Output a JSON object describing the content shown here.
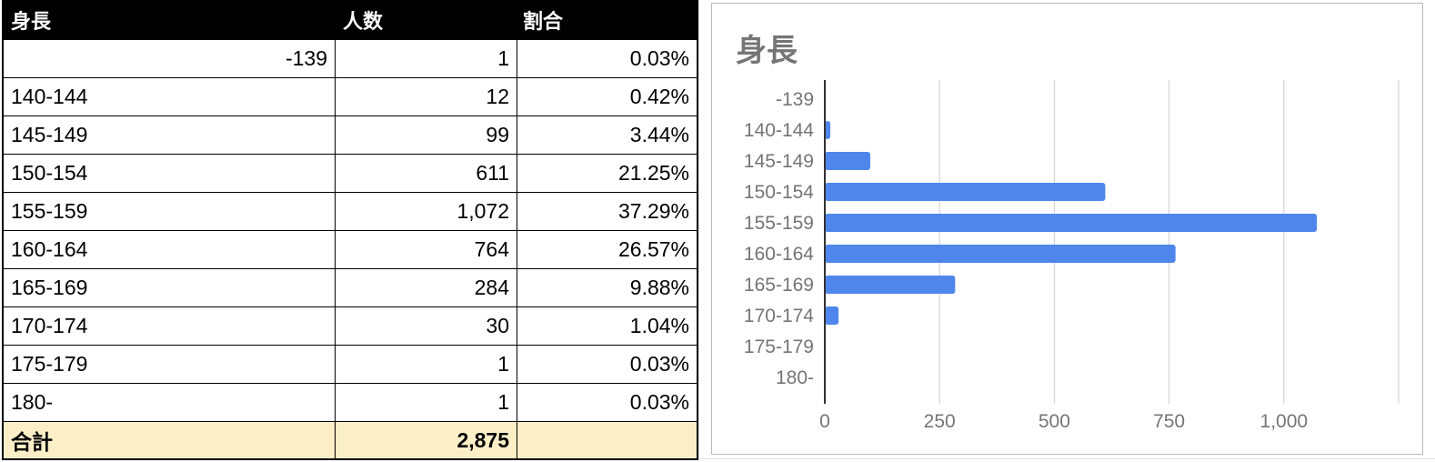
{
  "table": {
    "headers": [
      "身長",
      "人数",
      "割合"
    ],
    "rows": [
      [
        "-139",
        "1",
        "0.03%"
      ],
      [
        "140-144",
        "12",
        "0.42%"
      ],
      [
        "145-149",
        "99",
        "3.44%"
      ],
      [
        "150-154",
        "611",
        "21.25%"
      ],
      [
        "155-159",
        "1,072",
        "37.29%"
      ],
      [
        "160-164",
        "764",
        "26.57%"
      ],
      [
        "165-169",
        "284",
        "9.88%"
      ],
      [
        "170-174",
        "30",
        "1.04%"
      ],
      [
        "175-179",
        "1",
        "0.03%"
      ],
      [
        "180-",
        "1",
        "0.03%"
      ]
    ],
    "total": [
      "合計",
      "2,875",
      ""
    ]
  },
  "chart_data": {
    "type": "bar",
    "orientation": "horizontal",
    "title": "身長",
    "categories": [
      "-139",
      "140-144",
      "145-149",
      "150-154",
      "155-159",
      "160-164",
      "165-169",
      "170-174",
      "175-179",
      "180-"
    ],
    "values": [
      1,
      12,
      99,
      611,
      1072,
      764,
      284,
      30,
      1,
      1
    ],
    "xlim": [
      0,
      1250
    ],
    "xticks": [
      "0",
      "250",
      "500",
      "750",
      "1,000"
    ],
    "grid": true,
    "bar_color": "#4f86ec"
  }
}
